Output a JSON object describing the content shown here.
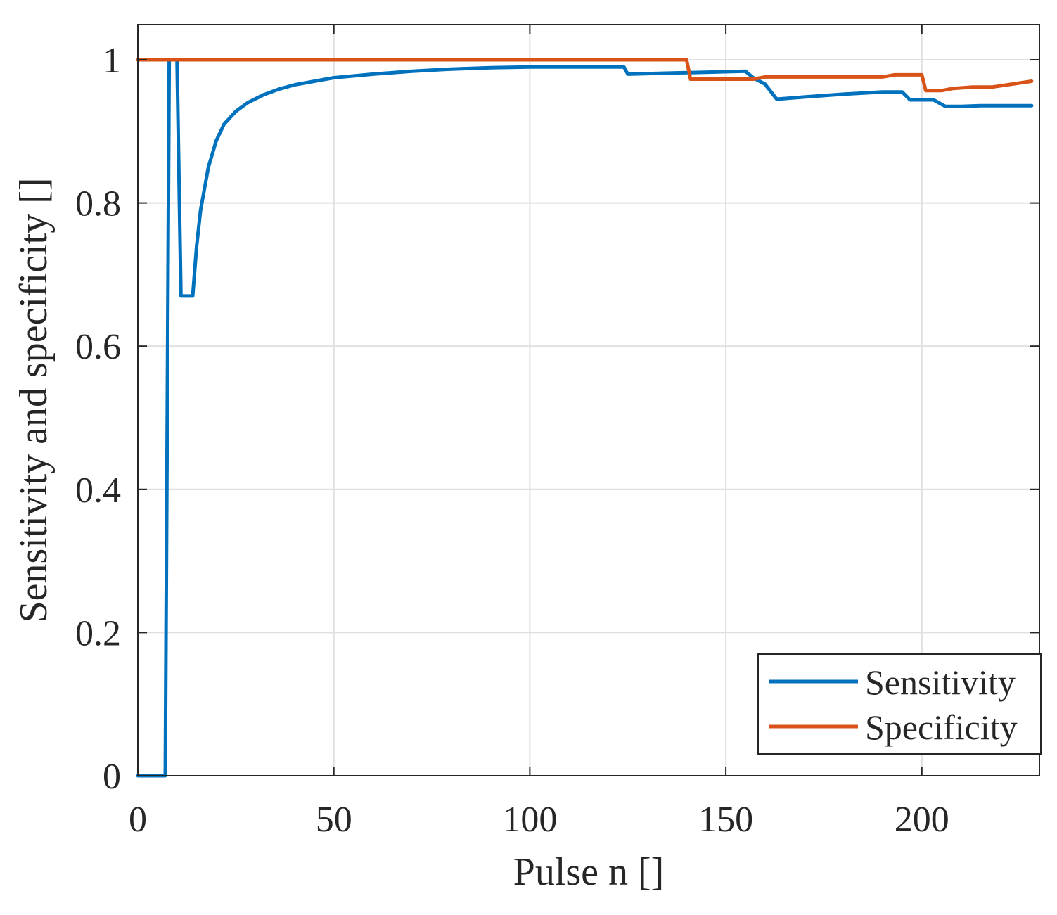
{
  "chart_data": {
    "type": "line",
    "title": "",
    "xlabel": "Pulse n []",
    "ylabel": "Sensitivity and specificity []",
    "xlim": [
      0,
      230
    ],
    "ylim": [
      0,
      1.05
    ],
    "xticks": [
      0,
      50,
      100,
      150,
      200
    ],
    "yticks": [
      0,
      0.2,
      0.4,
      0.6,
      0.8,
      1
    ],
    "xtick_labels": [
      "0",
      "50",
      "100",
      "150",
      "200"
    ],
    "ytick_labels": [
      "0",
      "0.2",
      "0.4",
      "0.6",
      "0.8",
      "1"
    ],
    "grid": true,
    "legend_position": "bottom-right",
    "series": [
      {
        "name": "Sensitivity",
        "color": "#0072BD",
        "points": [
          [
            0,
            0
          ],
          [
            7,
            0
          ],
          [
            8,
            1
          ],
          [
            10,
            1
          ],
          [
            11,
            0.67
          ],
          [
            14,
            0.67
          ],
          [
            15,
            0.74
          ],
          [
            16,
            0.79
          ],
          [
            18,
            0.85
          ],
          [
            20,
            0.887
          ],
          [
            22,
            0.91
          ],
          [
            25,
            0.928
          ],
          [
            28,
            0.94
          ],
          [
            32,
            0.951
          ],
          [
            36,
            0.959
          ],
          [
            40,
            0.965
          ],
          [
            50,
            0.975
          ],
          [
            60,
            0.98
          ],
          [
            70,
            0.984
          ],
          [
            80,
            0.987
          ],
          [
            90,
            0.989
          ],
          [
            100,
            0.99
          ],
          [
            124,
            0.99
          ],
          [
            125,
            0.98
          ],
          [
            140,
            0.982
          ],
          [
            141,
            0.982
          ],
          [
            155,
            0.984
          ],
          [
            157,
            0.975
          ],
          [
            160,
            0.966
          ],
          [
            163,
            0.945
          ],
          [
            170,
            0.948
          ],
          [
            180,
            0.952
          ],
          [
            190,
            0.955
          ],
          [
            195,
            0.955
          ],
          [
            197,
            0.944
          ],
          [
            203,
            0.944
          ],
          [
            206,
            0.935
          ],
          [
            210,
            0.935
          ],
          [
            215,
            0.936
          ],
          [
            228,
            0.936
          ]
        ]
      },
      {
        "name": "Specificity",
        "color": "#D95319",
        "points": [
          [
            0,
            1
          ],
          [
            140,
            1
          ],
          [
            141,
            0.973
          ],
          [
            150,
            0.973
          ],
          [
            157,
            0.973
          ],
          [
            160,
            0.976
          ],
          [
            190,
            0.976
          ],
          [
            193,
            0.979
          ],
          [
            200,
            0.979
          ],
          [
            201,
            0.957
          ],
          [
            205,
            0.957
          ],
          [
            208,
            0.96
          ],
          [
            213,
            0.962
          ],
          [
            218,
            0.962
          ],
          [
            228,
            0.97
          ]
        ]
      }
    ]
  }
}
